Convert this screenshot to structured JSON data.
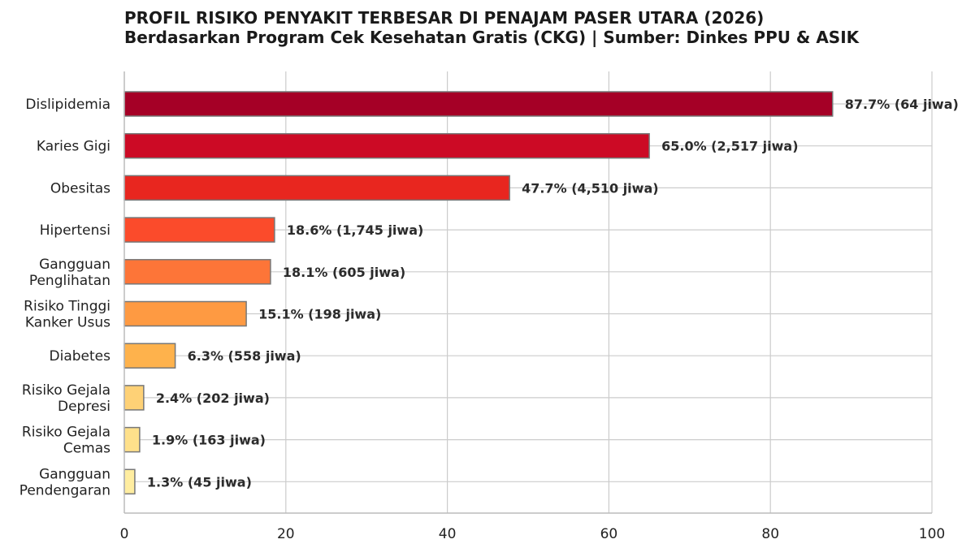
{
  "chart_data": {
    "type": "bar",
    "orientation": "horizontal",
    "title": "PROFIL RISIKO PENYAKIT TERBESAR DI PENAJAM PASER UTARA (2026)",
    "subtitle": "Berdasarkan Program Cek Kesehatan Gratis (CKG) | Sumber: Dinkes PPU & ASIK",
    "xlabel": "",
    "ylabel": "",
    "xlim": [
      0,
      100
    ],
    "xticks": [
      "0",
      "20",
      "40",
      "60",
      "80",
      "100"
    ],
    "grid": true,
    "categories": [
      [
        "Dislipidemia"
      ],
      [
        "Karies Gigi"
      ],
      [
        "Obesitas"
      ],
      [
        "Hipertensi"
      ],
      [
        "Gangguan",
        "Penglihatan"
      ],
      [
        "Risiko Tinggi",
        "Kanker Usus"
      ],
      [
        "Diabetes"
      ],
      [
        "Risiko Gejala",
        "Depresi"
      ],
      [
        "Risiko Gejala",
        "Cemas"
      ],
      [
        "Gangguan",
        "Pendengaran"
      ]
    ],
    "values": [
      87.7,
      65.0,
      47.7,
      18.6,
      18.1,
      15.1,
      6.3,
      2.4,
      1.9,
      1.3
    ],
    "data_labels": [
      "87.7% (64 jiwa)",
      "65.0% (2,517 jiwa)",
      "47.7% (4,510 jiwa)",
      "18.6% (1,745 jiwa)",
      "18.1% (605 jiwa)",
      "15.1% (198 jiwa)",
      "6.3% (558 jiwa)",
      "2.4% (202 jiwa)",
      "1.9% (163 jiwa)",
      "1.3% (45 jiwa)"
    ],
    "colors": [
      "#a50026",
      "#cc0a25",
      "#e8261f",
      "#fb4b2b",
      "#fd7538",
      "#fe9a42",
      "#feb24c",
      "#fed176",
      "#fee08b",
      "#ffeda0"
    ]
  }
}
